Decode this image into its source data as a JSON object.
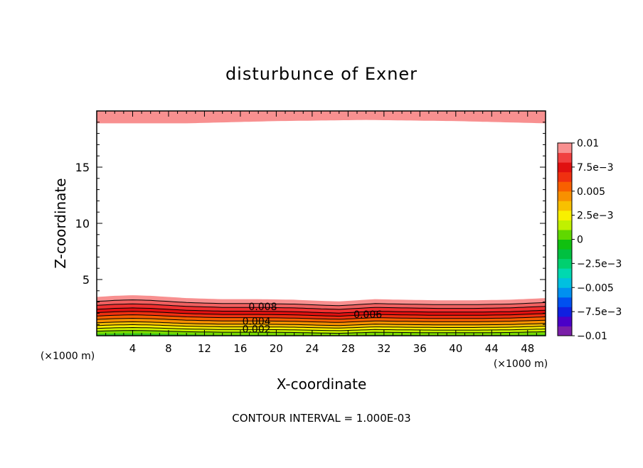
{
  "chart_data": {
    "type": "heatmap",
    "title": "disturbunce of Exner",
    "xlabel": "X-coordinate",
    "ylabel": "Z-coordinate",
    "x_unit_note": "(×1000 m)",
    "z_unit_note": "(×1000 m)",
    "footer": "CONTOUR INTERVAL = 1.000E-03",
    "xlim": [
      0,
      50
    ],
    "ylim": [
      0,
      20
    ],
    "x_ticks": [
      4,
      8,
      12,
      16,
      20,
      24,
      28,
      32,
      36,
      40,
      44,
      48
    ],
    "y_ticks": [
      5,
      10,
      15
    ],
    "colorbar": {
      "range": [
        -0.01,
        0.01
      ],
      "tick_labels": [
        "0.01",
        "7.5e-3",
        "0.005",
        "2.5e-3",
        "0",
        "-2.5e-3",
        "-0.005",
        "-7.5e-3",
        "-0.01"
      ],
      "colors": [
        "#7a1fa8",
        "#4a00c8",
        "#1020e0",
        "#0050f0",
        "#0090f0",
        "#00c0e0",
        "#00d8b0",
        "#00d070",
        "#00c040",
        "#10c010",
        "#60d800",
        "#c0f000",
        "#f8f000",
        "#f8c000",
        "#f89000",
        "#f86000",
        "#f03010",
        "#e01010",
        "#f04040",
        "#f89090"
      ]
    },
    "contour_labels": [
      {
        "text": "0.008",
        "x": 18.5,
        "z": 2.6
      },
      {
        "text": "0.006",
        "x": 30.2,
        "z": 1.9
      },
      {
        "text": "0.004",
        "x": 17.8,
        "z": 1.3
      },
      {
        "text": "0.002",
        "x": 17.8,
        "z": 0.6
      }
    ],
    "surface_contours_profile": {
      "x": [
        0,
        2,
        4,
        6,
        10,
        14,
        18,
        22,
        25,
        27,
        29,
        31,
        34,
        38,
        42,
        46,
        50
      ],
      "z_offset": [
        0.0,
        0.1,
        0.15,
        0.1,
        -0.1,
        -0.2,
        -0.2,
        -0.25,
        -0.35,
        -0.4,
        -0.3,
        -0.2,
        -0.25,
        -0.3,
        -0.3,
        -0.25,
        -0.1
      ],
      "base_levels": [
        0.15,
        0.4,
        0.65,
        0.9,
        1.15,
        1.45,
        1.75,
        2.05,
        2.35,
        2.7,
        3.05,
        3.45
      ],
      "colors": [
        "#30c020",
        "#7ada00",
        "#c8f000",
        "#f8f000",
        "#f8c000",
        "#f89000",
        "#f86000",
        "#f03010",
        "#e01010",
        "#f03030",
        "#f06060",
        "#f89090"
      ]
    },
    "top_band": {
      "color": "#f89090",
      "x": [
        0,
        10,
        20,
        30,
        40,
        50
      ],
      "z_bottom": [
        18.9,
        18.9,
        19.1,
        19.2,
        19.1,
        18.9
      ]
    }
  }
}
